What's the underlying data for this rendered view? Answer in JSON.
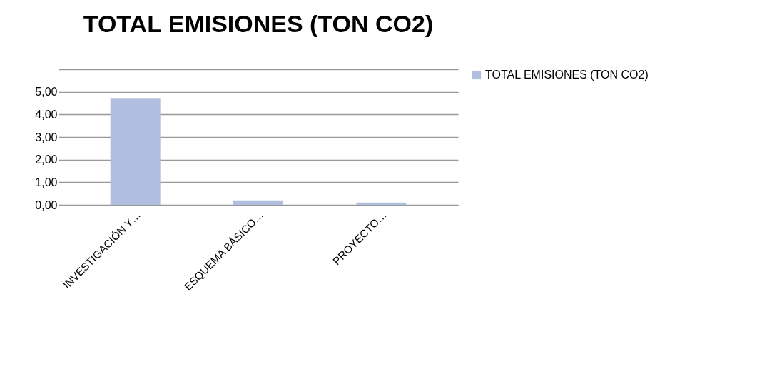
{
  "chart_data": {
    "type": "bar",
    "title": "TOTAL EMISIONES (TON CO2)",
    "categories": [
      "INVESTIGACIÓN Y…",
      "ESQUEMA BÁSICO…",
      "PROYECTO…"
    ],
    "series": [
      {
        "name": "TOTAL EMISIONES (TON CO2)",
        "color": "#b0bfe0",
        "values": [
          4.7,
          0.2,
          0.1
        ]
      }
    ],
    "ylim": [
      0,
      6
    ],
    "yticks": [
      {
        "value": 0,
        "label": "0,00"
      },
      {
        "value": 1,
        "label": "1,00"
      },
      {
        "value": 2,
        "label": "2,00"
      },
      {
        "value": 3,
        "label": "3,00"
      },
      {
        "value": 4,
        "label": "4,00"
      },
      {
        "value": 5,
        "label": "5,00"
      },
      {
        "value": 6,
        "label": null
      }
    ],
    "grid": "y",
    "legend": "right"
  }
}
